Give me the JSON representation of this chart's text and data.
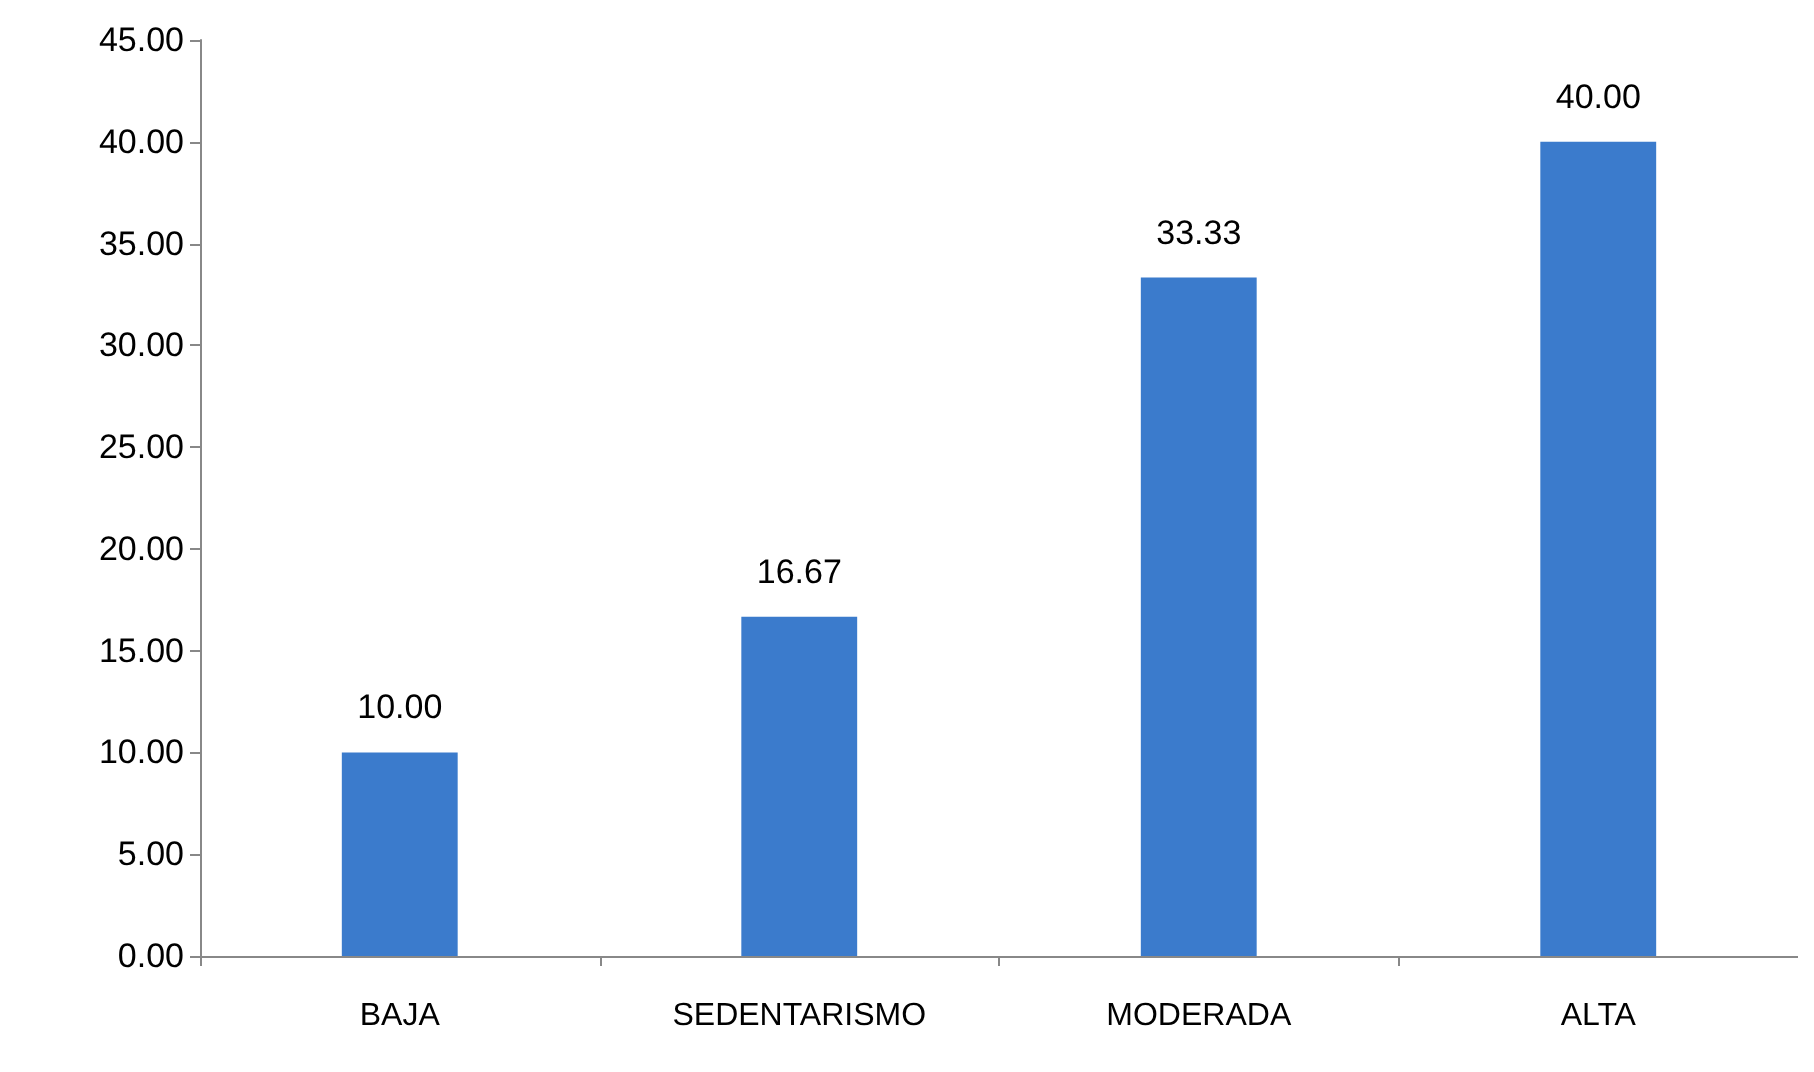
{
  "chart_data": {
    "type": "bar",
    "categories": [
      "BAJA",
      "SEDENTARISMO",
      "MODERADA",
      "ALTA"
    ],
    "values": [
      10,
      16.67,
      33.33,
      40
    ],
    "value_labels": [
      "10.00",
      "16.67",
      "33.33",
      "40.00"
    ],
    "color": "#3b7bcc",
    "ylim": [
      0,
      45
    ],
    "yticks": [
      {
        "value": 0,
        "label": "0.00"
      },
      {
        "value": 5,
        "label": "5.00"
      },
      {
        "value": 10,
        "label": "10.00"
      },
      {
        "value": 15,
        "label": "15.00"
      },
      {
        "value": 20,
        "label": "20.00"
      },
      {
        "value": 25,
        "label": "25.00"
      },
      {
        "value": 30,
        "label": "30.00"
      },
      {
        "value": 35,
        "label": "35.00"
      },
      {
        "value": 40,
        "label": "40.00"
      },
      {
        "value": 45,
        "label": "45.00"
      }
    ],
    "grid": false
  }
}
